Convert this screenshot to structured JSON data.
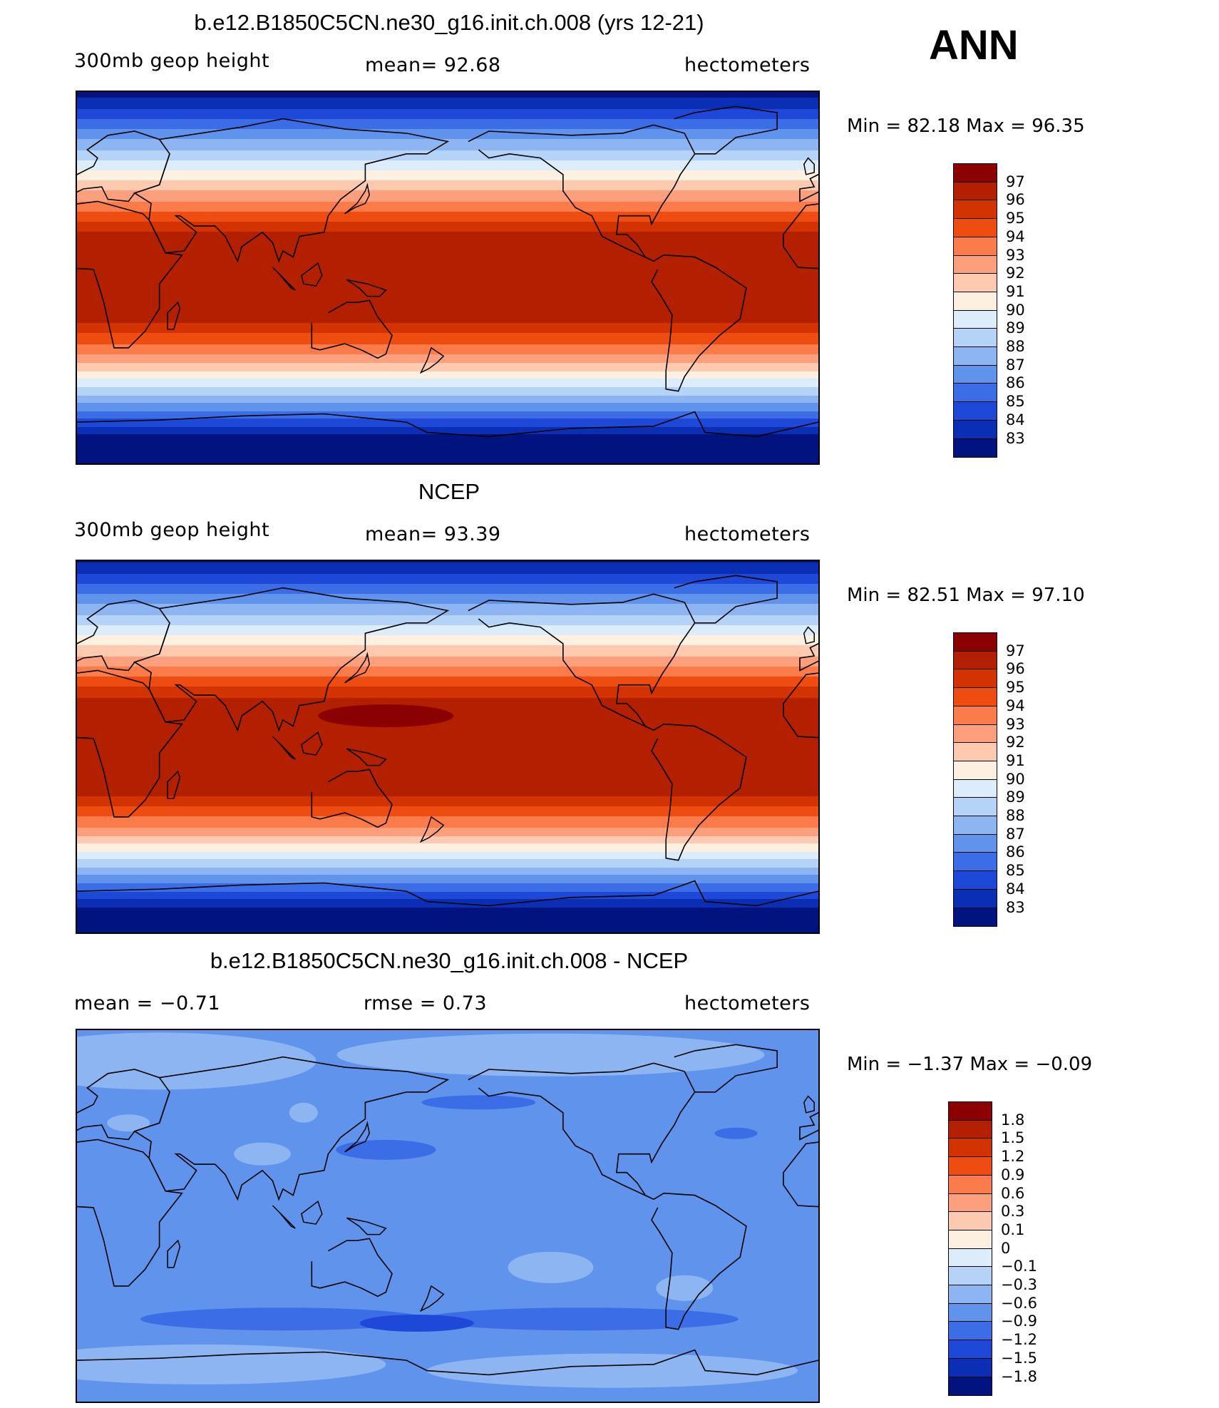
{
  "season": "ANN",
  "panels": [
    {
      "id": "model",
      "title": "b.e12.B1850C5CN.ne30_g16.init.ch.008 (yrs 12-21)",
      "left_label": "300mb geop height",
      "center_label": "mean=   92.68",
      "right_label": "hectometers",
      "minmax": "Min =   82.18  Max =   96.35",
      "field": "model"
    },
    {
      "id": "obs",
      "title": "NCEP",
      "left_label": "300mb geop height",
      "center_label": "mean=   93.39",
      "right_label": "hectometers",
      "minmax": "Min =   82.51  Max =   97.10",
      "field": "obs"
    },
    {
      "id": "diff",
      "title": "b.e12.B1850C5CN.ne30_g16.init.ch.008 - NCEP",
      "left_label": "mean =   −0.71",
      "center_label": "rmse =     0.73",
      "right_label": "hectometers",
      "minmax": "Min =   −1.37  Max =   −0.09",
      "field": "diff"
    }
  ],
  "colorbars": {
    "abs": {
      "labels": [
        "97",
        "96",
        "95",
        "94",
        "93",
        "92",
        "91",
        "90",
        "89",
        "88",
        "87",
        "86",
        "85",
        "84",
        "83"
      ],
      "colors": [
        "#8b0000",
        "#b22000",
        "#d23300",
        "#ef4c12",
        "#fb7b4a",
        "#fc9f7c",
        "#fdcab0",
        "#fdf0e0",
        "#ddecfb",
        "#b5d3f7",
        "#8db5f2",
        "#5f93ec",
        "#3b6ee6",
        "#1e48d8",
        "#0b2fb4",
        "#00137e"
      ]
    },
    "diff": {
      "labels": [
        "1.8",
        "1.5",
        "1.2",
        "0.9",
        "0.6",
        "0.3",
        "0.1",
        "0",
        "−0.1",
        "−0.3",
        "−0.6",
        "−0.9",
        "−1.2",
        "−1.5",
        "−1.8"
      ],
      "colors": [
        "#8b0000",
        "#b22000",
        "#d23300",
        "#ef4c12",
        "#fb7b4a",
        "#fc9f7c",
        "#fdcab0",
        "#fdf0e0",
        "#ddecfb",
        "#b5d3f7",
        "#8db5f2",
        "#5f93ec",
        "#3b6ee6",
        "#1e48d8",
        "#0b2fb4",
        "#00137e"
      ]
    }
  }
}
